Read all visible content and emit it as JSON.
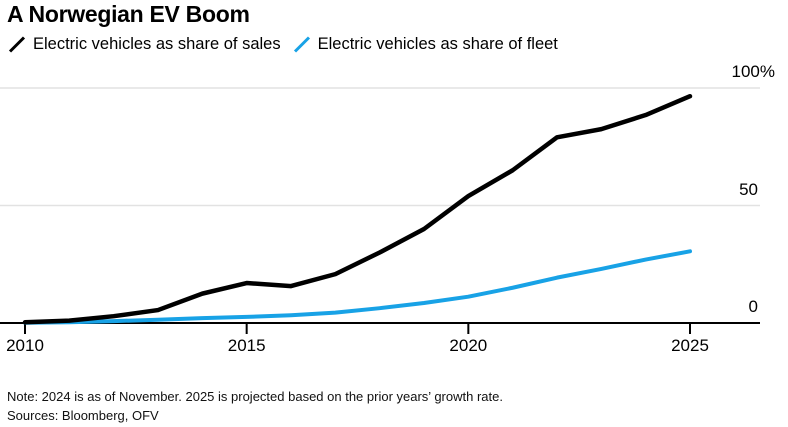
{
  "header": {
    "title": "A Norwegian EV Boom"
  },
  "legend": {
    "items": [
      {
        "key": "sales",
        "label": "Electric vehicles as share of sales",
        "color": "#000000"
      },
      {
        "key": "fleet",
        "label": "Electric vehicles as share of fleet",
        "color": "#18a2e6"
      }
    ]
  },
  "chart_data": {
    "type": "line",
    "title": "A Norwegian EV Boom",
    "x": [
      2010,
      2011,
      2012,
      2013,
      2014,
      2015,
      2016,
      2017,
      2018,
      2019,
      2020,
      2021,
      2022,
      2023,
      2024,
      2025
    ],
    "series": [
      {
        "key": "sales",
        "name": "Electric vehicles as share of sales",
        "color": "#000000",
        "values": [
          0.3,
          1,
          2.9,
          5.5,
          12.5,
          17,
          15.7,
          20.8,
          30,
          40,
          54,
          65,
          79,
          82.5,
          88.5,
          96.5
        ]
      },
      {
        "key": "fleet",
        "name": "Electric vehicles as share of fleet",
        "color": "#18a2e6",
        "values": [
          0.1,
          0.3,
          0.8,
          1.4,
          2.1,
          2.6,
          3.3,
          4.4,
          6.3,
          8.5,
          11.2,
          15,
          19.3,
          23,
          27,
          30.5
        ]
      }
    ],
    "xlabel": "",
    "ylabel": "",
    "unit": "%",
    "ylim": [
      0,
      100
    ],
    "xlim": [
      2010,
      2025
    ],
    "y_axis_side": "right",
    "grid": "horizontal",
    "legend_position": "top",
    "y_ticks": [
      {
        "value": 100,
        "label": "100%"
      },
      {
        "value": 50,
        "label": "50"
      },
      {
        "value": 0,
        "label": "0"
      }
    ],
    "x_ticks": [
      {
        "value": 2010,
        "label": "2010"
      },
      {
        "value": 2015,
        "label": "2015"
      },
      {
        "value": 2020,
        "label": "2020"
      },
      {
        "value": 2025,
        "label": "2025"
      }
    ],
    "colors": {
      "axis": "#000000",
      "gridline": "#e2e2e2"
    }
  },
  "footer": {
    "note": "Note: 2024 is as of November. 2025 is projected based on the prior years’ growth rate.",
    "sources": "Sources: Bloomberg, OFV"
  }
}
